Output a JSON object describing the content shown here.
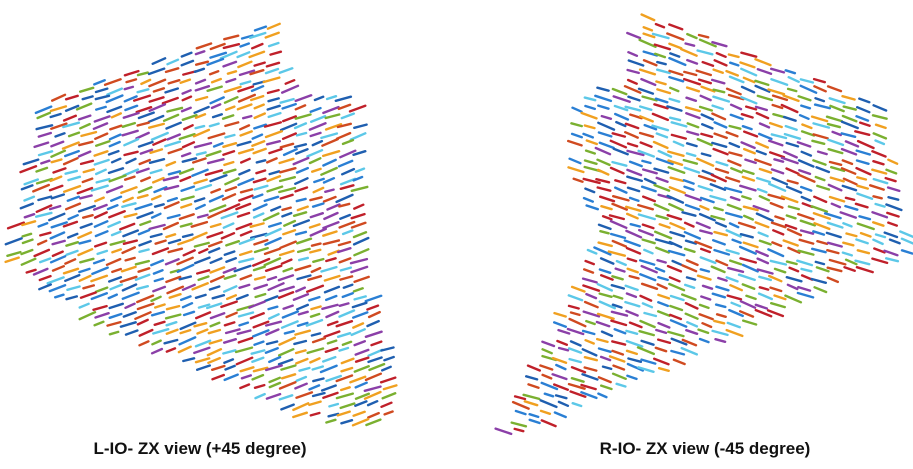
{
  "panels": [
    {
      "caption": "L-IO- ZX view (+45 degree)"
    },
    {
      "caption": "R-IO- ZX view (-45 degree)"
    }
  ]
}
